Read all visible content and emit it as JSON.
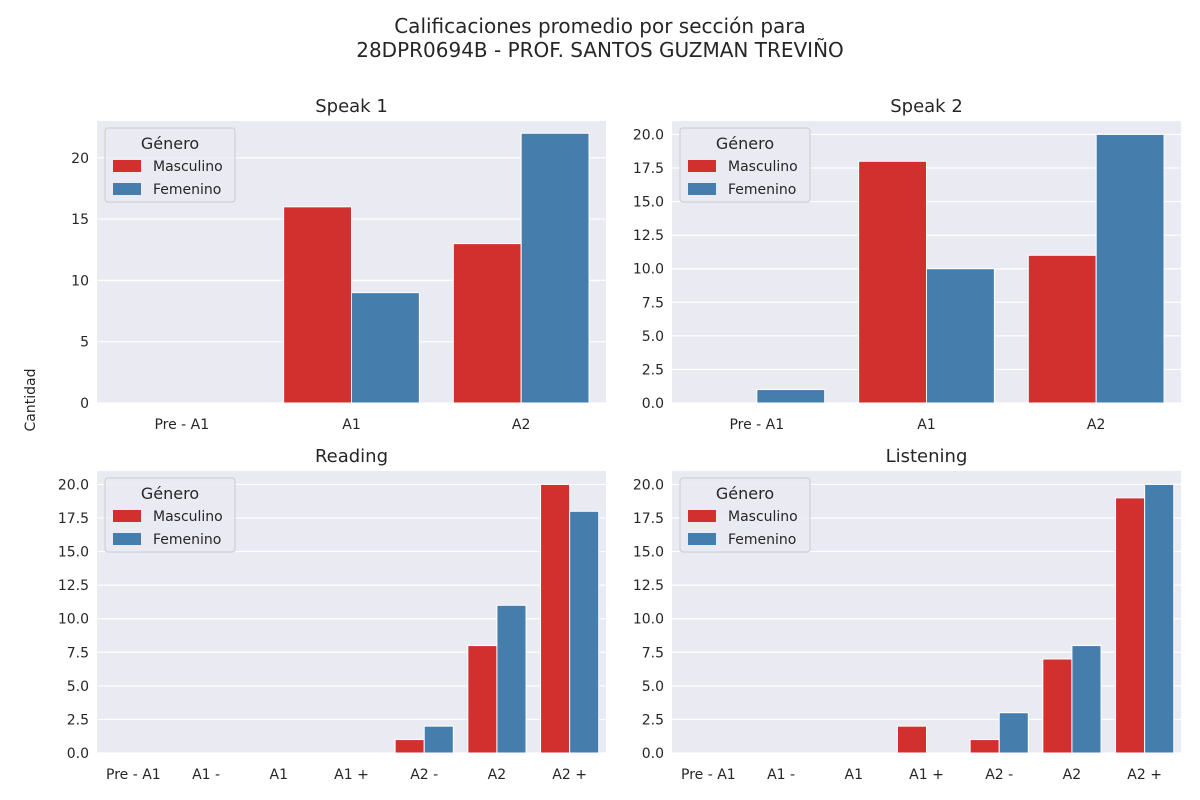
{
  "figure": {
    "title_line1": "Calificaciones promedio por sección para",
    "title_line2": "28DPR0694B - PROF. SANTOS GUZMAN TREVIÑO",
    "shared_ylabel": "Cantidad"
  },
  "colors": {
    "background": "#eaeaf2",
    "grid": "#ffffff",
    "masculino": "#d1302f",
    "femenino": "#457dad",
    "text": "#262626"
  },
  "chart_data": [
    {
      "type": "bar",
      "title": "Speak 1",
      "categories": [
        "Pre - A1",
        "A1",
        "A2"
      ],
      "series": [
        {
          "name": "Masculino",
          "values": [
            0,
            16,
            13
          ]
        },
        {
          "name": "Femenino",
          "values": [
            0,
            9,
            22
          ]
        }
      ],
      "ylim": [
        0,
        23
      ],
      "yticks": [
        0,
        5,
        10,
        15,
        20
      ],
      "ytick_labels": [
        "0",
        "5",
        "10",
        "15",
        "20"
      ],
      "ylabel": "",
      "xlabel": "",
      "legend": {
        "title": "Género",
        "entries": [
          "Masculino",
          "Femenino"
        ],
        "placement": "top-left"
      },
      "grid": true
    },
    {
      "type": "bar",
      "title": "Speak 2",
      "categories": [
        "Pre - A1",
        "A1",
        "A2"
      ],
      "series": [
        {
          "name": "Masculino",
          "values": [
            0,
            18,
            11
          ]
        },
        {
          "name": "Femenino",
          "values": [
            1,
            10,
            20
          ]
        }
      ],
      "ylim": [
        0,
        21
      ],
      "yticks": [
        0,
        2.5,
        5,
        7.5,
        10,
        12.5,
        15,
        17.5,
        20
      ],
      "ytick_labels": [
        "0.0",
        "2.5",
        "5.0",
        "7.5",
        "10.0",
        "12.5",
        "15.0",
        "17.5",
        "20.0"
      ],
      "ylabel": "",
      "xlabel": "",
      "legend": {
        "title": "Género",
        "entries": [
          "Masculino",
          "Femenino"
        ],
        "placement": "top-left"
      },
      "grid": true
    },
    {
      "type": "bar",
      "title": "Reading",
      "categories": [
        "Pre - A1",
        "A1 -",
        "A1",
        "A1 +",
        "A2 -",
        "A2",
        "A2 +"
      ],
      "series": [
        {
          "name": "Masculino",
          "values": [
            0,
            0,
            0,
            0,
            1,
            8,
            20
          ]
        },
        {
          "name": "Femenino",
          "values": [
            0,
            0,
            0,
            0,
            2,
            11,
            18
          ]
        }
      ],
      "ylim": [
        0,
        21
      ],
      "yticks": [
        0,
        2.5,
        5,
        7.5,
        10,
        12.5,
        15,
        17.5,
        20
      ],
      "ytick_labels": [
        "0.0",
        "2.5",
        "5.0",
        "7.5",
        "10.0",
        "12.5",
        "15.0",
        "17.5",
        "20.0"
      ],
      "ylabel": "",
      "xlabel": "",
      "legend": {
        "title": "Género",
        "entries": [
          "Masculino",
          "Femenino"
        ],
        "placement": "top-left"
      },
      "grid": true
    },
    {
      "type": "bar",
      "title": "Listening",
      "categories": [
        "Pre - A1",
        "A1 -",
        "A1",
        "A1 +",
        "A2 -",
        "A2",
        "A2 +"
      ],
      "series": [
        {
          "name": "Masculino",
          "values": [
            0,
            0,
            0,
            2,
            1,
            7,
            19
          ]
        },
        {
          "name": "Femenino",
          "values": [
            0,
            0,
            0,
            0,
            3,
            8,
            20
          ]
        }
      ],
      "ylim": [
        0,
        21
      ],
      "yticks": [
        0,
        2.5,
        5,
        7.5,
        10,
        12.5,
        15,
        17.5,
        20
      ],
      "ytick_labels": [
        "0.0",
        "2.5",
        "5.0",
        "7.5",
        "10.0",
        "12.5",
        "15.0",
        "17.5",
        "20.0"
      ],
      "ylabel": "",
      "xlabel": "",
      "legend": {
        "title": "Género",
        "entries": [
          "Masculino",
          "Femenino"
        ],
        "placement": "top-left"
      },
      "grid": true
    }
  ]
}
